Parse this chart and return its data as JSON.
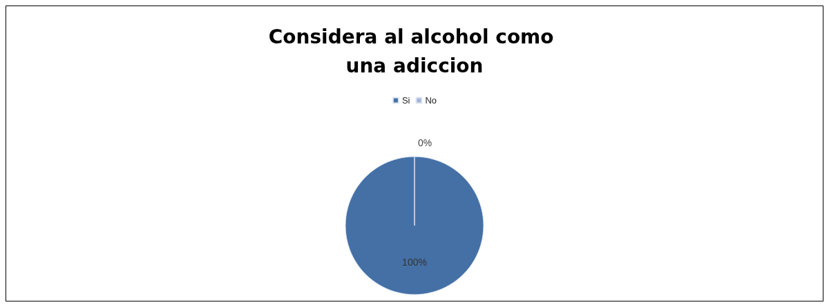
{
  "chart_data": {
    "type": "pie",
    "title": "Considera al alcohol como una adiccion",
    "categories": [
      "Si",
      "No"
    ],
    "values": [
      100,
      0
    ],
    "colors": [
      "#4470a6",
      "#a3b6d8"
    ],
    "value_labels": [
      "100%",
      "0%"
    ],
    "legend": "top"
  }
}
